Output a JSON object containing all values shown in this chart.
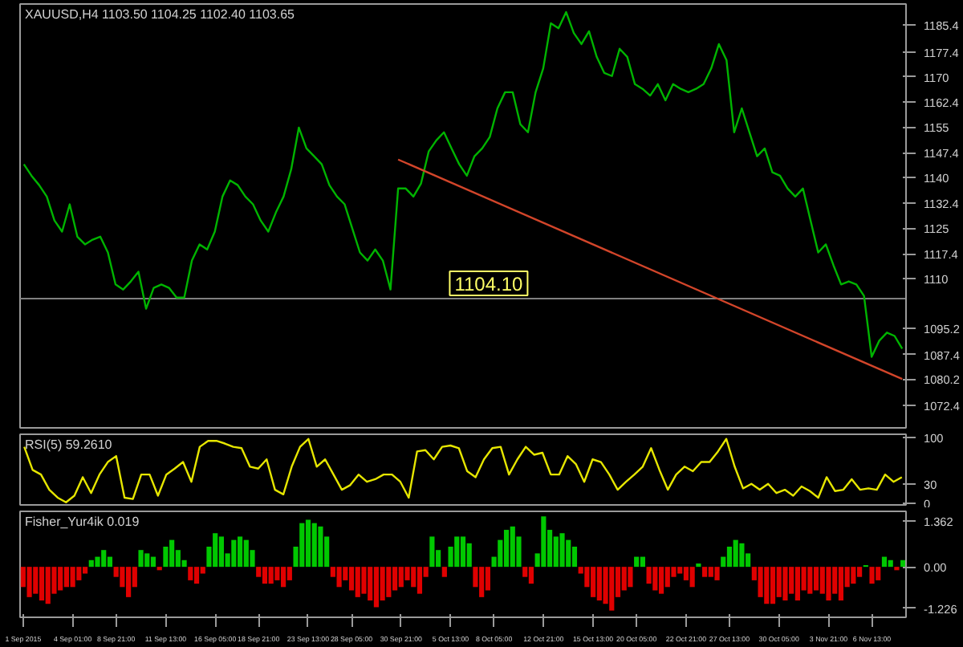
{
  "chart_data": [
    {
      "type": "line",
      "title": "XAUUSD,H4 1103.50 1104.25 1102.40 1103.65",
      "tick_labels": "y",
      "grid": false,
      "categories": [
        null,
        null,
        null,
        null,
        null,
        null,
        null,
        null,
        null,
        null,
        null,
        null,
        null,
        null,
        null,
        null,
        null,
        null,
        null,
        null,
        null,
        null,
        null,
        null,
        null,
        null,
        null,
        null,
        null,
        null,
        null,
        null,
        null,
        null,
        null,
        null,
        null,
        null,
        null,
        null,
        null,
        null,
        null,
        null,
        null,
        null,
        null,
        null,
        null,
        null,
        null,
        null,
        null,
        null,
        null,
        null,
        null,
        null,
        null,
        null,
        null,
        null,
        null,
        null,
        null,
        null,
        null,
        null,
        null,
        null,
        null,
        null,
        null,
        null,
        null,
        null,
        null,
        null,
        null,
        null,
        null,
        null,
        null,
        null,
        null,
        null,
        null,
        null,
        null,
        null,
        null,
        null,
        null,
        null,
        null,
        null,
        null,
        null,
        null,
        null,
        null,
        null,
        null,
        null,
        null,
        null,
        null,
        null,
        null,
        null,
        null,
        null,
        null,
        null,
        null,
        null
      ],
      "ylim": [
        1065.7,
        1191.6
      ],
      "yticks": [
        1185.4,
        1177.4,
        1170.0,
        1162.4,
        1155.0,
        1147.4,
        1140.0,
        1132.4,
        1125.0,
        1117.4,
        1110.0,
        1095.2,
        1087.4,
        1080.2,
        1072.4
      ],
      "series": [
        {
          "color": "#00b400",
          "values": [
            1144.0,
            1140.6,
            1137.8,
            1134.4,
            1127.3,
            1124.0,
            1132.1,
            1122.5,
            1120.2,
            1121.6,
            1122.5,
            1117.8,
            1108.3,
            1106.8,
            1109.2,
            1112.1,
            1101.1,
            1107.3,
            1108.3,
            1107.3,
            1104.4,
            1104.4,
            1115.4,
            1120.2,
            1118.7,
            1124.0,
            1134.4,
            1139.2,
            1137.8,
            1134.4,
            1132.1,
            1127.3,
            1124.0,
            1129.7,
            1134.4,
            1142.5,
            1154.9,
            1148.7,
            1146.4,
            1144.0,
            1137.8,
            1134.4,
            1132.1,
            1124.9,
            1117.8,
            1115.4,
            1118.7,
            1115.4,
            1106.8,
            1136.8,
            1136.8,
            1134.4,
            1138.3,
            1147.8,
            1151.1,
            1153.5,
            1148.7,
            1144.0,
            1140.6,
            1146.4,
            1148.7,
            1152.1,
            1160.6,
            1165.4,
            1165.4,
            1155.9,
            1153.5,
            1165.4,
            1172.5,
            1185.9,
            1184.4,
            1189.2,
            1183.0,
            1179.7,
            1183.5,
            1175.9,
            1171.1,
            1170.2,
            1178.3,
            1175.9,
            1167.8,
            1166.4,
            1164.4,
            1167.8,
            1163.0,
            1167.8,
            1166.4,
            1165.4,
            1166.4,
            1167.8,
            1172.5,
            1179.7,
            1174.9,
            1153.5,
            1160.6,
            1153.5,
            1146.4,
            1148.7,
            1141.6,
            1140.6,
            1136.8,
            1134.4,
            1136.8,
            1127.3,
            1117.8,
            1120.2,
            1114.0,
            1108.3,
            1109.2,
            1108.3,
            1104.9,
            1086.8,
            1091.6,
            1094.0,
            1093.0,
            1089.2
          ]
        },
        {
          "color": "#d2452a",
          "values": [
            null,
            null,
            null,
            null,
            null,
            null,
            null,
            null,
            null,
            null,
            null,
            null,
            null,
            null,
            null,
            null,
            null,
            null,
            null,
            null,
            null,
            null,
            null,
            null,
            null,
            null,
            null,
            null,
            null,
            null,
            null,
            null,
            null,
            null,
            null,
            null,
            null,
            null,
            null,
            null,
            null,
            null,
            null,
            null,
            null,
            null,
            null,
            null,
            null,
            1145.4,
            null,
            null,
            null,
            null,
            null,
            null,
            null,
            null,
            null,
            null,
            null,
            null,
            null,
            null,
            null,
            null,
            null,
            null,
            null,
            null,
            null,
            null,
            null,
            null,
            null,
            null,
            null,
            null,
            null,
            null,
            null,
            null,
            null,
            null,
            null,
            null,
            null,
            null,
            null,
            null,
            null,
            null,
            null,
            null,
            null,
            null,
            null,
            null,
            null,
            null,
            null,
            null,
            null,
            null,
            null,
            null,
            null,
            null,
            null,
            null,
            null,
            null,
            null,
            null,
            null,
            1080.2
          ]
        }
      ],
      "ref_lines": [
        {
          "axis": "y",
          "value": 1104.1,
          "label": "1104.10",
          "color": "#808080"
        }
      ]
    },
    {
      "type": "line",
      "title": "RSI(5) 59.2610",
      "tick_labels": "y",
      "grid": false,
      "categories": [
        null,
        null,
        null,
        null,
        null,
        null,
        null,
        null,
        null,
        null,
        null,
        null,
        null,
        null,
        null,
        null,
        null,
        null,
        null,
        null,
        null,
        null,
        null,
        null,
        null,
        null,
        null,
        null,
        null,
        null,
        null,
        null,
        null,
        null,
        null,
        null,
        null,
        null,
        null,
        null,
        null,
        null,
        null,
        null,
        null,
        null,
        null,
        null,
        null,
        null,
        null,
        null,
        null,
        null,
        null,
        null,
        null,
        null,
        null,
        null,
        null,
        null,
        null,
        null,
        null,
        null,
        null,
        null,
        null,
        null,
        null,
        null,
        null,
        null,
        null,
        null,
        null,
        null,
        null,
        null,
        null,
        null,
        null,
        null,
        null,
        null,
        null,
        null,
        null,
        null,
        null,
        null,
        null,
        null,
        null,
        null,
        null,
        null,
        null,
        null,
        null,
        null,
        null,
        null,
        null,
        null
      ],
      "ylim": [
        -2,
        105
      ],
      "yticks": [
        0,
        30,
        100
      ],
      "series": [
        {
          "color": "#e6e600",
          "values": [
            86,
            51,
            44,
            21,
            9,
            2,
            12,
            40,
            16,
            44,
            63,
            72,
            9,
            7,
            44,
            44,
            12,
            44,
            53,
            63,
            33,
            86,
            95,
            95,
            91,
            86,
            84,
            56,
            53,
            67,
            21,
            14,
            56,
            86,
            98,
            56,
            67,
            44,
            21,
            28,
            44,
            33,
            37,
            44,
            44,
            33,
            9,
            79,
            81,
            67,
            86,
            88,
            84,
            49,
            40,
            67,
            84,
            86,
            44,
            67,
            86,
            74,
            77,
            44,
            44,
            72,
            60,
            33,
            67,
            63,
            44,
            21,
            33,
            44,
            56,
            84,
            51,
            21,
            44,
            56,
            49,
            63,
            63,
            79,
            98,
            56,
            23,
            30,
            21,
            30,
            16,
            21,
            12,
            26,
            19,
            9,
            40,
            19,
            21,
            37,
            21,
            23,
            21,
            44,
            33,
            40
          ]
        }
      ]
    },
    {
      "type": "bar",
      "title": "Fisher_Yur4ik 0.019",
      "grid": false,
      "ylim": [
        -1.5,
        1.65
      ],
      "yticks": [
        {
          "value": 1.362,
          "label": "1.362"
        },
        {
          "value": 0,
          "label": "0.00"
        },
        {
          "value": -1.226,
          "label": "-1.226"
        }
      ],
      "categories": [
        "1 Sep 2015",
        null,
        null,
        null,
        null,
        null,
        null,
        null,
        "4 Sep 01:00",
        null,
        null,
        null,
        null,
        null,
        null,
        "8 Sep 21:00",
        null,
        null,
        null,
        null,
        null,
        null,
        null,
        "11 Sep 13:00",
        null,
        null,
        null,
        null,
        null,
        null,
        null,
        "16 Sep 05:00",
        null,
        null,
        null,
        null,
        null,
        null,
        "18 Sep 21:00",
        null,
        null,
        null,
        null,
        null,
        null,
        null,
        "23 Sep 13:00",
        null,
        null,
        null,
        null,
        null,
        null,
        "28 Sep 05:00",
        null,
        null,
        null,
        null,
        null,
        null,
        null,
        "30 Sep 21:00",
        null,
        null,
        null,
        null,
        null,
        null,
        null,
        "5 Oct 13:00",
        null,
        null,
        null,
        null,
        null,
        null,
        "8 Oct 05:00",
        null,
        null,
        null,
        null,
        null,
        null,
        null,
        "12 Oct 21:00",
        null,
        null,
        null,
        null,
        null,
        null,
        null,
        "15 Oct 13:00",
        null,
        null,
        null,
        null,
        null,
        null,
        "20 Oct 05:00",
        null,
        null,
        null,
        null,
        null,
        null,
        null,
        "22 Oct 21:00",
        null,
        null,
        null,
        null,
        null,
        null,
        "27 Oct 13:00",
        null,
        null,
        null,
        null,
        null,
        null,
        null,
        "30 Oct 05:00",
        null,
        null,
        null,
        null,
        null,
        null,
        null,
        "3 Nov 21:00",
        null,
        null,
        null,
        null,
        null,
        null,
        "6 Nov 13:00",
        null,
        null,
        null,
        null,
        null
      ],
      "values": [
        -0.6,
        -0.9,
        -0.8,
        -1.0,
        -1.1,
        -0.8,
        -0.7,
        -0.6,
        -0.6,
        -0.4,
        -0.2,
        0.2,
        0.3,
        0.5,
        0.3,
        -0.3,
        -0.6,
        -0.9,
        -0.6,
        0.5,
        0.4,
        0.3,
        -0.1,
        0.6,
        0.8,
        0.5,
        0.2,
        -0.4,
        -0.5,
        -0.2,
        0.6,
        1.0,
        0.9,
        0.4,
        0.8,
        0.9,
        0.8,
        0.5,
        -0.3,
        -0.5,
        -0.5,
        -0.4,
        -0.6,
        -0.4,
        0.6,
        1.3,
        1.4,
        1.3,
        1.2,
        0.9,
        -0.3,
        -0.6,
        -0.4,
        -0.7,
        -0.9,
        -0.8,
        -1.0,
        -1.2,
        -1.0,
        -0.9,
        -0.7,
        -0.6,
        -0.4,
        -0.6,
        -0.8,
        -0.3,
        0.9,
        0.5,
        -0.3,
        0.6,
        0.9,
        0.9,
        0.7,
        -0.6,
        -0.9,
        -0.7,
        0.3,
        0.8,
        1.1,
        1.2,
        0.9,
        -0.3,
        -0.5,
        0.4,
        1.5,
        1.1,
        0.9,
        1.0,
        0.8,
        0.6,
        -0.2,
        -0.6,
        -0.9,
        -1.0,
        -1.1,
        -1.3,
        -0.9,
        -0.7,
        -0.6,
        0.3,
        0.3,
        -0.5,
        -0.7,
        -0.8,
        -0.6,
        -0.3,
        -0.2,
        -0.4,
        -0.6,
        0.1,
        -0.3,
        -0.3,
        -0.4,
        0.3,
        0.6,
        0.8,
        0.7,
        0.4,
        -0.4,
        -0.9,
        -1.1,
        -1.1,
        -0.9,
        -1.0,
        -0.8,
        -1.0,
        -0.7,
        -0.8,
        -0.7,
        -0.8,
        -1.0,
        -0.8,
        -1.0,
        -0.6,
        -0.5,
        -0.3,
        0.05,
        -0.5,
        -0.4,
        0.3,
        0.2,
        -0.1,
        0.2
      ],
      "colors": [
        "#e00000",
        "#e00000",
        "#e00000",
        "#e00000",
        "#e00000",
        "#e00000",
        "#e00000",
        "#e00000",
        "#e00000",
        "#e00000",
        "#e00000",
        "#00c800",
        "#00c800",
        "#00c800",
        "#00c800",
        "#e00000",
        "#e00000",
        "#e00000",
        "#e00000",
        "#00c800",
        "#00c800",
        "#00c800",
        "#e00000",
        "#00c800",
        "#00c800",
        "#00c800",
        "#00c800",
        "#e00000",
        "#e00000",
        "#e00000",
        "#00c800",
        "#00c800",
        "#00c800",
        "#00c800",
        "#00c800",
        "#00c800",
        "#00c800",
        "#00c800",
        "#e00000",
        "#e00000",
        "#e00000",
        "#e00000",
        "#e00000",
        "#e00000",
        "#00c800",
        "#00c800",
        "#00c800",
        "#00c800",
        "#00c800",
        "#00c800",
        "#e00000",
        "#e00000",
        "#e00000",
        "#e00000",
        "#e00000",
        "#e00000",
        "#e00000",
        "#e00000",
        "#e00000",
        "#e00000",
        "#e00000",
        "#e00000",
        "#e00000",
        "#e00000",
        "#e00000",
        "#e00000",
        "#00c800",
        "#00c800",
        "#e00000",
        "#00c800",
        "#00c800",
        "#00c800",
        "#00c800",
        "#e00000",
        "#e00000",
        "#e00000",
        "#00c800",
        "#00c800",
        "#00c800",
        "#00c800",
        "#00c800",
        "#e00000",
        "#e00000",
        "#00c800",
        "#00c800",
        "#00c800",
        "#00c800",
        "#00c800",
        "#00c800",
        "#00c800",
        "#e00000",
        "#e00000",
        "#e00000",
        "#e00000",
        "#e00000",
        "#e00000",
        "#e00000",
        "#e00000",
        "#e00000",
        "#00c800",
        "#00c800",
        "#e00000",
        "#e00000",
        "#e00000",
        "#e00000",
        "#e00000",
        "#e00000",
        "#e00000",
        "#e00000",
        "#00c800",
        "#e00000",
        "#e00000",
        "#e00000",
        "#00c800",
        "#00c800",
        "#00c800",
        "#00c800",
        "#00c800",
        "#e00000",
        "#e00000",
        "#e00000",
        "#e00000",
        "#e00000",
        "#e00000",
        "#e00000",
        "#e00000",
        "#e00000",
        "#e00000",
        "#e00000",
        "#e00000",
        "#e00000",
        "#e00000",
        "#e00000",
        "#e00000",
        "#e00000",
        "#e00000",
        "#00c800",
        "#e00000",
        "#e00000",
        "#00c800",
        "#00c800",
        "#e00000",
        "#00c800"
      ]
    }
  ]
}
